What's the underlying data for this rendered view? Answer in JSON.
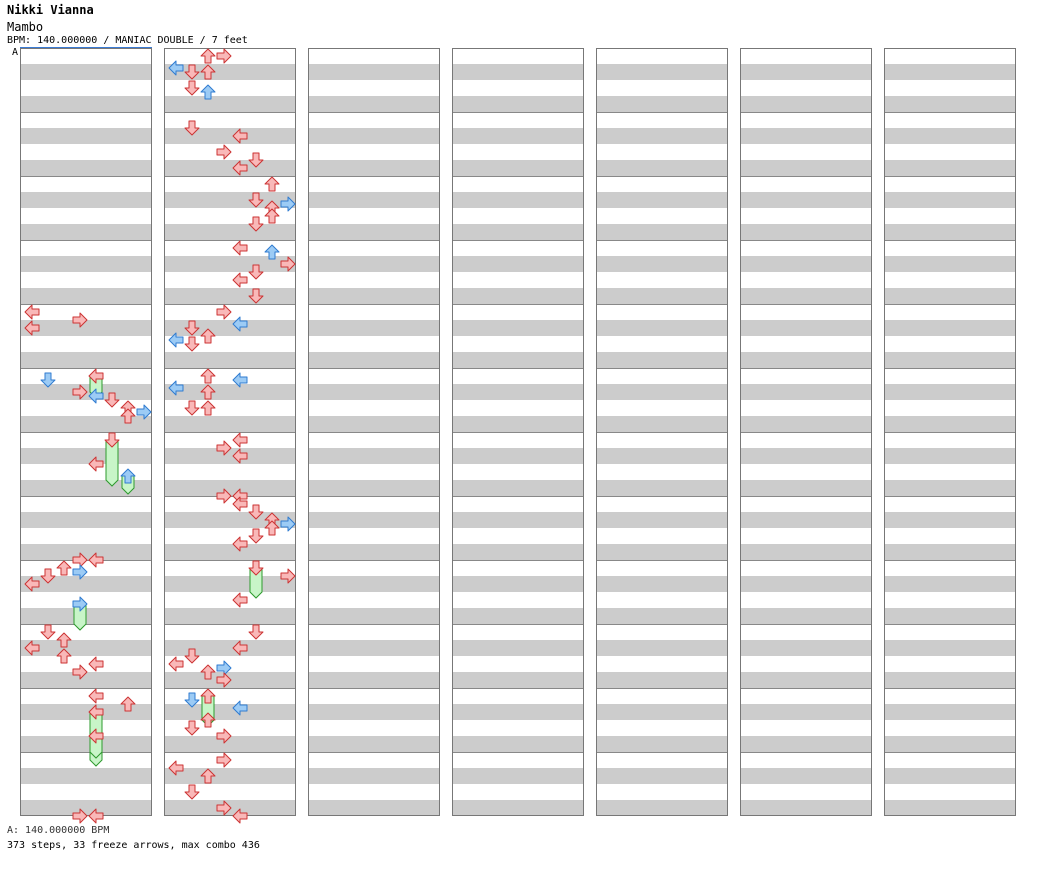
{
  "header": {
    "artist": "Nikki Vianna",
    "title": "Mambo",
    "meta": "BPM: 140.000000 / MANIAC DOUBLE / 7 feet"
  },
  "bpm_marker": "A",
  "footer": {
    "bpm_legend": "A: 140.000000 BPM",
    "stats": "373 steps, 33 freeze arrows, max combo 436"
  },
  "colors": {
    "red_arrow_fill": "#f9b8b8",
    "red_arrow_stroke": "#cc3333",
    "blue_arrow_fill": "#9ccbf5",
    "blue_arrow_stroke": "#2f7bd0",
    "freeze_fill": "#c8f5c8",
    "freeze_stroke": "#2e9a2e",
    "stripe_gray": "#cccccc"
  },
  "chart_data": {
    "type": "step-chart",
    "mode": "MANIAC DOUBLE",
    "difficulty_feet": 7,
    "bpm": 140,
    "lanes": [
      "L1",
      "D1",
      "U1",
      "R1",
      "L2",
      "D2",
      "U2",
      "R2"
    ],
    "measures_per_column": 12,
    "columns": 7,
    "notes": [
      {
        "m": 4,
        "b": 0,
        "lane": 0
      },
      {
        "m": 4,
        "b": 0.5,
        "lane": 3
      },
      {
        "m": 4,
        "b": 1,
        "lane": 0
      },
      {
        "m": 5,
        "b": 0,
        "lane": 4,
        "freeze": 1.0
      },
      {
        "m": 5,
        "b": 0.25,
        "lane": 1
      },
      {
        "m": 5,
        "b": 1,
        "lane": 3
      },
      {
        "m": 5,
        "b": 1.25,
        "lane": 4
      },
      {
        "m": 5,
        "b": 1.5,
        "lane": 5
      },
      {
        "m": 5,
        "b": 2,
        "lane": 6
      },
      {
        "m": 5,
        "b": 2.25,
        "lane": 7
      },
      {
        "m": 5,
        "b": 2.5,
        "lane": 6
      },
      {
        "m": 6,
        "b": 0,
        "lane": 5,
        "freeze": 2.5
      },
      {
        "m": 6,
        "b": 1.5,
        "lane": 4
      },
      {
        "m": 6,
        "b": 2.25,
        "lane": 6,
        "freeze": 0.75
      },
      {
        "m": 7,
        "b": 3.5,
        "lane": 3
      },
      {
        "m": 7,
        "b": 3.5,
        "lane": 4
      },
      {
        "m": 8,
        "b": 0,
        "lane": 2
      },
      {
        "m": 8,
        "b": 0.25,
        "lane": 3
      },
      {
        "m": 8,
        "b": 0.5,
        "lane": 1
      },
      {
        "m": 8,
        "b": 1,
        "lane": 0
      },
      {
        "m": 8,
        "b": 2.25,
        "lane": 3,
        "freeze": 1.25
      },
      {
        "m": 9,
        "b": 0,
        "lane": 1
      },
      {
        "m": 9,
        "b": 0.5,
        "lane": 2
      },
      {
        "m": 9,
        "b": 1,
        "lane": 0
      },
      {
        "m": 9,
        "b": 1.5,
        "lane": 2
      },
      {
        "m": 9,
        "b": 2,
        "lane": 4
      },
      {
        "m": 9,
        "b": 2.5,
        "lane": 3
      },
      {
        "m": 10,
        "b": 0,
        "lane": 4
      },
      {
        "m": 10,
        "b": 0.5,
        "lane": 6
      },
      {
        "m": 10,
        "b": 1,
        "lane": 4,
        "freeze": 3.0
      },
      {
        "m": 10,
        "b": 2.5,
        "lane": 4,
        "freeze": 1.0
      },
      {
        "m": 11,
        "b": 3.5,
        "lane": 3
      },
      {
        "m": 11,
        "b": 3.5,
        "lane": 4
      },
      {
        "m": 12,
        "b": 0,
        "lane": 2
      },
      {
        "m": 12,
        "b": 0,
        "lane": 3
      },
      {
        "m": 12,
        "b": 0.75,
        "lane": 0
      },
      {
        "m": 12,
        "b": 1,
        "lane": 1
      },
      {
        "m": 12,
        "b": 1,
        "lane": 2
      },
      {
        "m": 12,
        "b": 2,
        "lane": 1
      },
      {
        "m": 12,
        "b": 2.25,
        "lane": 2
      },
      {
        "m": 13,
        "b": 0.5,
        "lane": 1
      },
      {
        "m": 13,
        "b": 1,
        "lane": 4
      },
      {
        "m": 13,
        "b": 2,
        "lane": 3
      },
      {
        "m": 13,
        "b": 2.5,
        "lane": 5
      },
      {
        "m": 13,
        "b": 3,
        "lane": 4
      },
      {
        "m": 14,
        "b": 0,
        "lane": 6
      },
      {
        "m": 14,
        "b": 1,
        "lane": 5
      },
      {
        "m": 14,
        "b": 1.25,
        "lane": 7
      },
      {
        "m": 14,
        "b": 1.5,
        "lane": 6
      },
      {
        "m": 14,
        "b": 2,
        "lane": 6
      },
      {
        "m": 14,
        "b": 2.5,
        "lane": 5
      },
      {
        "m": 15,
        "b": 0,
        "lane": 4
      },
      {
        "m": 15,
        "b": 0.25,
        "lane": 6
      },
      {
        "m": 15,
        "b": 1,
        "lane": 7
      },
      {
        "m": 15,
        "b": 1.5,
        "lane": 5
      },
      {
        "m": 15,
        "b": 2,
        "lane": 4
      },
      {
        "m": 15,
        "b": 3,
        "lane": 5
      },
      {
        "m": 16,
        "b": 0,
        "lane": 3
      },
      {
        "m": 16,
        "b": 0.75,
        "lane": 4
      },
      {
        "m": 16,
        "b": 1,
        "lane": 1
      },
      {
        "m": 16,
        "b": 1.5,
        "lane": 2
      },
      {
        "m": 16,
        "b": 1.75,
        "lane": 0
      },
      {
        "m": 16,
        "b": 2,
        "lane": 1
      },
      {
        "m": 17,
        "b": 0,
        "lane": 2
      },
      {
        "m": 17,
        "b": 0.25,
        "lane": 4
      },
      {
        "m": 17,
        "b": 0.75,
        "lane": 0
      },
      {
        "m": 17,
        "b": 1,
        "lane": 2
      },
      {
        "m": 17,
        "b": 2,
        "lane": 1
      },
      {
        "m": 17,
        "b": 2,
        "lane": 2
      },
      {
        "m": 18,
        "b": 0,
        "lane": 4
      },
      {
        "m": 18,
        "b": 0.5,
        "lane": 3
      },
      {
        "m": 18,
        "b": 1,
        "lane": 4
      },
      {
        "m": 18,
        "b": 3.5,
        "lane": 3
      },
      {
        "m": 18,
        "b": 3.5,
        "lane": 4
      },
      {
        "m": 19,
        "b": 0,
        "lane": 4
      },
      {
        "m": 19,
        "b": 0.5,
        "lane": 5
      },
      {
        "m": 19,
        "b": 1,
        "lane": 6
      },
      {
        "m": 19,
        "b": 1.25,
        "lane": 7
      },
      {
        "m": 19,
        "b": 1.5,
        "lane": 6
      },
      {
        "m": 19,
        "b": 2,
        "lane": 5
      },
      {
        "m": 19,
        "b": 2.5,
        "lane": 4
      },
      {
        "m": 20,
        "b": 0,
        "lane": 5,
        "freeze": 1.5
      },
      {
        "m": 20,
        "b": 0.5,
        "lane": 7
      },
      {
        "m": 20,
        "b": 2,
        "lane": 4
      },
      {
        "m": 21,
        "b": 0,
        "lane": 5
      },
      {
        "m": 21,
        "b": 1,
        "lane": 4
      },
      {
        "m": 21,
        "b": 1.5,
        "lane": 1
      },
      {
        "m": 21,
        "b": 2,
        "lane": 0
      },
      {
        "m": 21,
        "b": 2.25,
        "lane": 3
      },
      {
        "m": 21,
        "b": 2.5,
        "lane": 2
      },
      {
        "m": 21,
        "b": 3,
        "lane": 3
      },
      {
        "m": 22,
        "b": 0,
        "lane": 2,
        "freeze": 1.5
      },
      {
        "m": 22,
        "b": 0.25,
        "lane": 1
      },
      {
        "m": 22,
        "b": 0.75,
        "lane": 4
      },
      {
        "m": 22,
        "b": 1.5,
        "lane": 2
      },
      {
        "m": 22,
        "b": 2,
        "lane": 1
      },
      {
        "m": 22,
        "b": 2.5,
        "lane": 3
      },
      {
        "m": 23,
        "b": 0,
        "lane": 3
      },
      {
        "m": 23,
        "b": 0.5,
        "lane": 0
      },
      {
        "m": 23,
        "b": 1,
        "lane": 2
      },
      {
        "m": 23,
        "b": 2,
        "lane": 1
      },
      {
        "m": 23,
        "b": 3,
        "lane": 3
      },
      {
        "m": 23,
        "b": 3.5,
        "lane": 4
      }
    ]
  }
}
